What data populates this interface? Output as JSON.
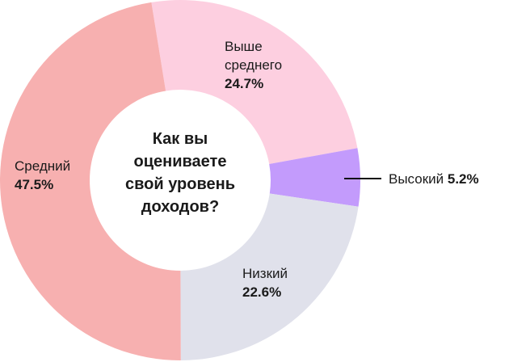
{
  "chart_data": {
    "type": "pie",
    "donut": true,
    "title": "Как вы оцениваете свой уровень доходов?",
    "slices": [
      {
        "label": "Выше среднего",
        "value": 24.7,
        "display": "24.7%",
        "color": "#fdcfe0"
      },
      {
        "label": "Высокий",
        "value": 5.2,
        "display": "5.2%",
        "color": "#c39bfc"
      },
      {
        "label": "Низкий",
        "value": 22.6,
        "display": "22.6%",
        "color": "#e0e1eb"
      },
      {
        "label": "Средний",
        "value": 47.5,
        "display": "47.5%",
        "color": "#f7b0b0"
      }
    ]
  }
}
